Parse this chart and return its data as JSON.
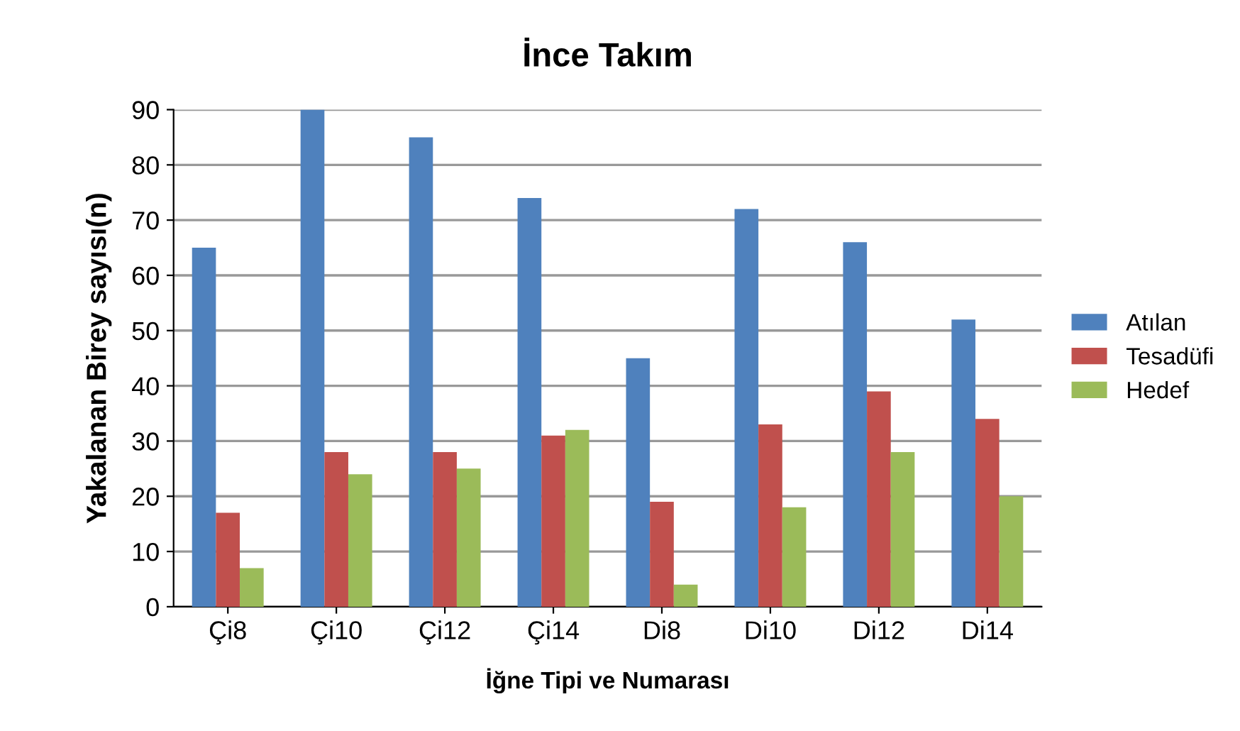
{
  "chart_data": {
    "type": "bar",
    "title": "İnce Takım",
    "xlabel": "İğne Tipi ve Numarası",
    "ylabel": "Yakalanan Birey sayısı(n)",
    "categories": [
      "Çi8",
      "Çi10",
      "Çi12",
      "Çi14",
      "Di8",
      "Di10",
      "Di12",
      "Di14"
    ],
    "series": [
      {
        "name": "Atılan",
        "color": "#4f81bd",
        "values": [
          65,
          90,
          85,
          74,
          45,
          72,
          66,
          52
        ]
      },
      {
        "name": "Tesadüfi",
        "color": "#c0504d",
        "values": [
          17,
          28,
          28,
          31,
          19,
          33,
          39,
          34
        ]
      },
      {
        "name": "Hedef",
        "color": "#9bbb59",
        "values": [
          7,
          24,
          25,
          32,
          4,
          18,
          28,
          20
        ]
      }
    ],
    "ylim": [
      0,
      90
    ],
    "yticks": [
      0,
      10,
      20,
      30,
      40,
      50,
      60,
      70,
      80,
      90
    ],
    "grid": "y",
    "legend": "right"
  }
}
